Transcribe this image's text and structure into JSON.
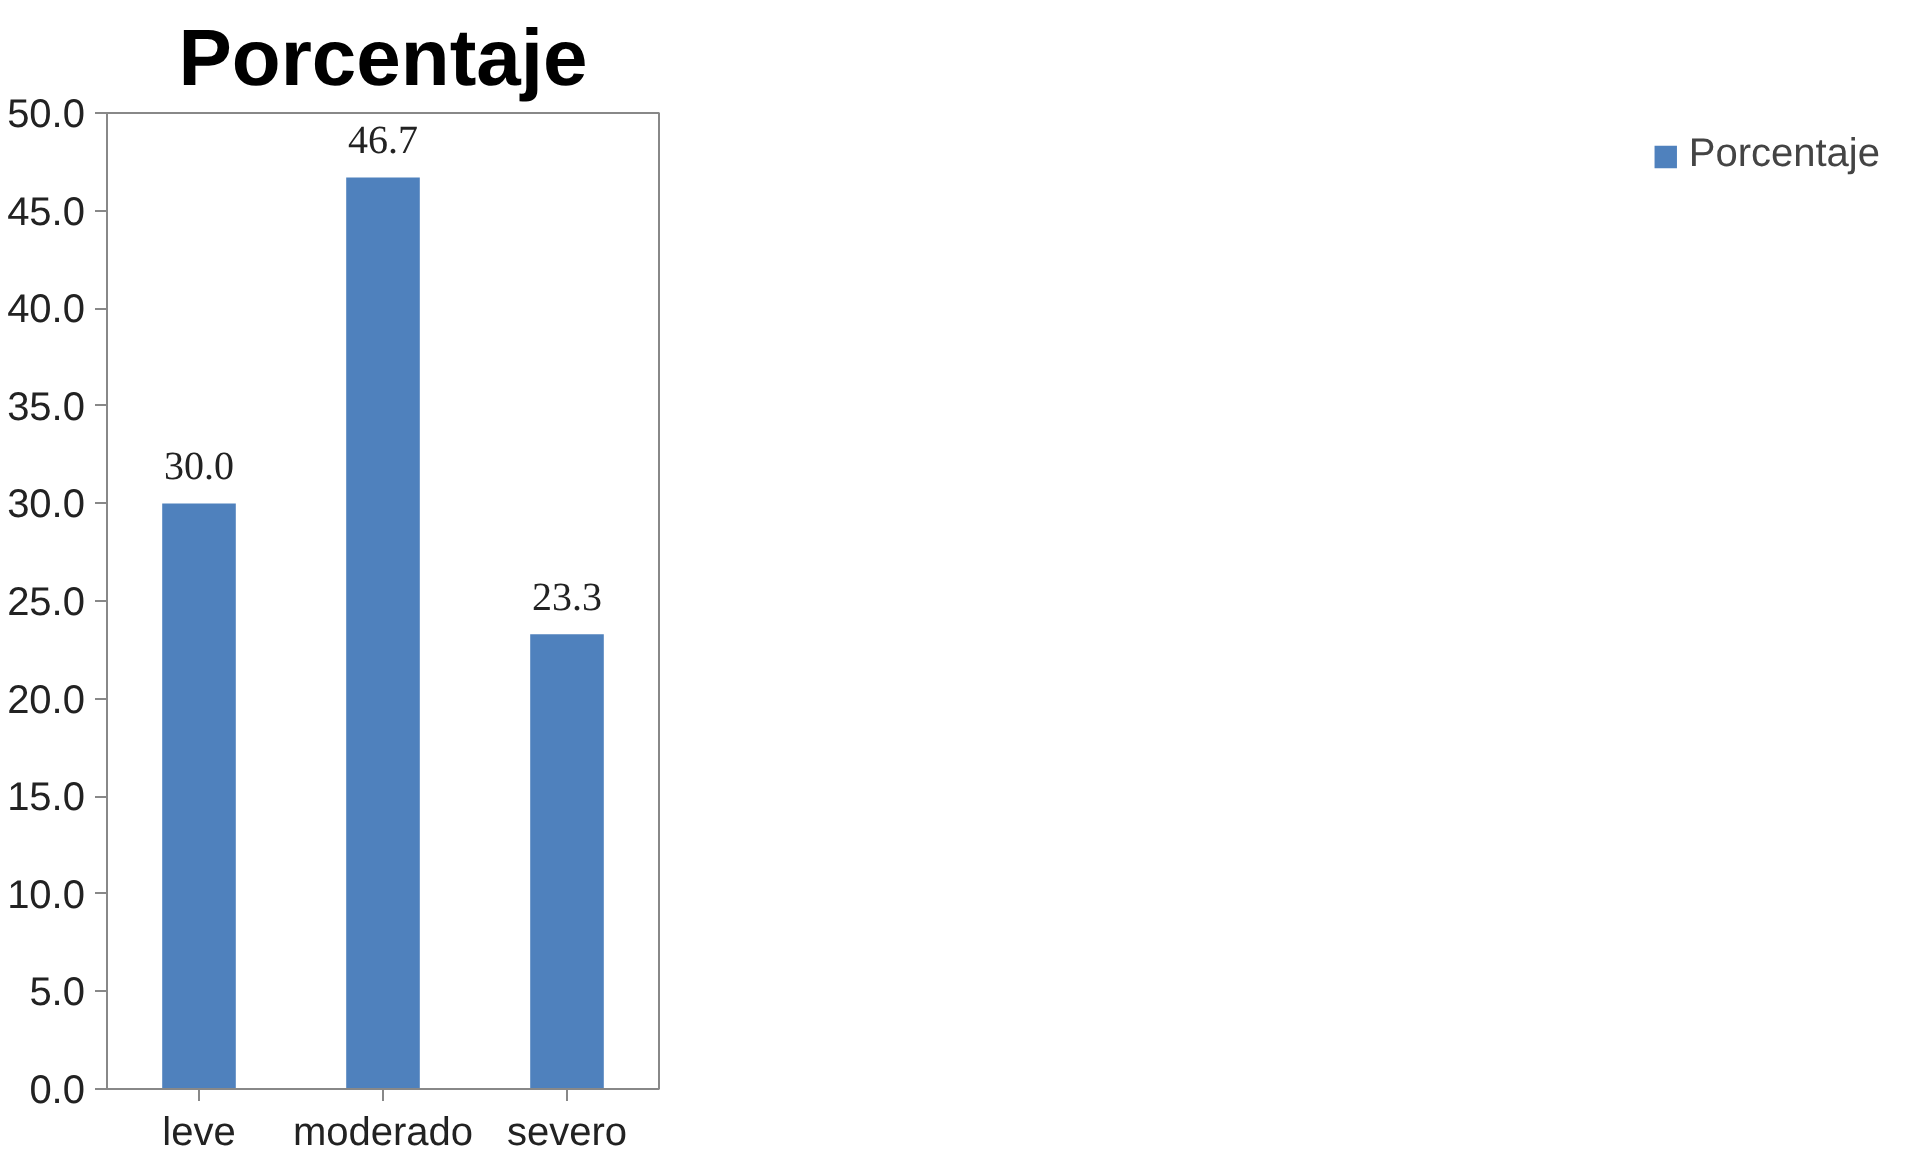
{
  "chart_data": {
    "type": "bar",
    "title": "Porcentaje",
    "categories": [
      "leve",
      "moderado",
      "severo"
    ],
    "series": [
      {
        "name": "Porcentaje",
        "color": "#4f81bd",
        "values": [
          30.0,
          46.7,
          23.3
        ],
        "value_labels": [
          "30.0",
          "46.7",
          "23.3"
        ]
      }
    ],
    "ylim": [
      0,
      50
    ],
    "yticks": [
      {
        "value": 0,
        "label": "0.0"
      },
      {
        "value": 5,
        "label": "5.0"
      },
      {
        "value": 10,
        "label": "10.0"
      },
      {
        "value": 15,
        "label": "15.0"
      },
      {
        "value": 20,
        "label": "20.0"
      },
      {
        "value": 25,
        "label": "25.0"
      },
      {
        "value": 30,
        "label": "30.0"
      },
      {
        "value": 35,
        "label": "35.0"
      },
      {
        "value": 40,
        "label": "40.0"
      },
      {
        "value": 45,
        "label": "45.0"
      },
      {
        "value": 50,
        "label": "50.0"
      }
    ],
    "grid": false,
    "legend": "right"
  }
}
